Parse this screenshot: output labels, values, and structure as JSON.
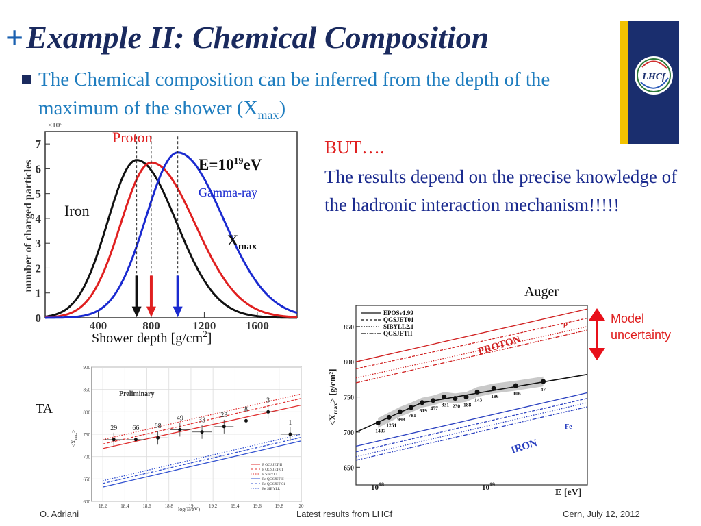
{
  "slide": {
    "title_plus": "+",
    "title": "Example II: Chemical Composition",
    "bullet_text": "The Chemical composition can be inferred from the depth of the maximum of the shower (X",
    "bullet_sub": "max",
    "bullet_end": ")",
    "but_label": "BUT….",
    "but_text": "The results depend on the precise knowledge of the hadronic interaction mechanism!!!!!",
    "logo_text": "LHCf",
    "footer_left": "O. Adriani",
    "footer_mid": "Latest results from LHCf",
    "footer_right": "Cern, July 12, 2012"
  },
  "colors": {
    "title": "#1a2a5e",
    "bullet": "#1f7dbf",
    "red": "#e02020",
    "blue": "#1a2a8e",
    "iron_curve": "#111111",
    "proton_curve": "#e02020",
    "gamma_curve": "#1a2ad0"
  },
  "chart_data": [
    {
      "type": "line",
      "annotations": {
        "proton": "Proton",
        "iron": "Iron",
        "gamma": "Gamma-ray",
        "energy_prefix": "E=10",
        "energy_exp": "19",
        "energy_suffix": "eV",
        "xmax": "X",
        "xmax_sub": "max"
      },
      "ylabel": "number of charged particles",
      "y_multiplier": "×10⁹",
      "xlabel_main": "Shower depth [g/cm",
      "xlabel_exp": "2",
      "xlabel_end": "]",
      "xticks": [
        "400",
        "800",
        "1200",
        "1600"
      ],
      "yticks": [
        "0",
        "1",
        "2",
        "3",
        "4",
        "5",
        "6",
        "7"
      ],
      "xlim": [
        0,
        1900
      ],
      "ylim": [
        0,
        7.5
      ],
      "curves": [
        {
          "name": "Iron",
          "color": "#111111",
          "peak_x": 690,
          "peak_y": 6.35,
          "sigma_left": 220,
          "sigma_right": 300
        },
        {
          "name": "Proton",
          "color": "#e02020",
          "peak_x": 800,
          "peak_y": 6.25,
          "sigma_left": 230,
          "sigma_right": 330
        },
        {
          "name": "Gamma-ray",
          "color": "#1a2ad0",
          "peak_x": 1000,
          "peak_y": 6.65,
          "sigma_left": 240,
          "sigma_right": 340
        }
      ]
    },
    {
      "type": "line",
      "label": "Auger",
      "legend": [
        "EPOSv1.99",
        "QGSJET01",
        "SIBYLL2.1",
        "QGSJETII"
      ],
      "ylabel": "<X",
      "ylabel_sub": "max",
      "ylabel_end": "> [g/cm²]",
      "xlabel": "E [eV]",
      "yticks": [
        "650",
        "700",
        "750",
        "800",
        "850"
      ],
      "xticks_main": [
        "10",
        "10"
      ],
      "xticks_exp": [
        "18",
        "19"
      ],
      "proton_label": "PROTON",
      "iron_label": "IRON",
      "p_tag": "p",
      "fe_tag": "Fe",
      "model_label_1": "Model",
      "model_label_2": "uncertainty",
      "points": [
        {
          "lgE": 18.05,
          "y": 713,
          "n": "1407"
        },
        {
          "lgE": 18.15,
          "y": 721,
          "n": "1251"
        },
        {
          "lgE": 18.25,
          "y": 729,
          "n": "998"
        },
        {
          "lgE": 18.35,
          "y": 735,
          "n": "781"
        },
        {
          "lgE": 18.45,
          "y": 742,
          "n": "619"
        },
        {
          "lgE": 18.55,
          "y": 745,
          "n": "457"
        },
        {
          "lgE": 18.65,
          "y": 750,
          "n": "331"
        },
        {
          "lgE": 18.75,
          "y": 748,
          "n": "230"
        },
        {
          "lgE": 18.85,
          "y": 750,
          "n": "188"
        },
        {
          "lgE": 18.95,
          "y": 757,
          "n": "143"
        },
        {
          "lgE": 19.1,
          "y": 762,
          "n": "186"
        },
        {
          "lgE": 19.3,
          "y": 766,
          "n": "106"
        },
        {
          "lgE": 19.55,
          "y": 772,
          "n": "47"
        }
      ]
    },
    {
      "type": "scatter",
      "label": "TA",
      "preliminary": "Preliminary",
      "xlabel": "log(E/eV)",
      "ylabel": "<X",
      "ylabel_sub": "max",
      "ylabel_end": ">",
      "xticks": [
        "18.2",
        "18.4",
        "18.6",
        "18.8",
        "19",
        "19.2",
        "19.4",
        "19.6",
        "19.8",
        "20"
      ],
      "yticks": [
        "600",
        "650",
        "700",
        "750",
        "800",
        "850",
        "900"
      ],
      "legend": [
        "P  QGSJET-II",
        "P  QGSJET-01",
        "P  SIBYLL",
        "Fe  QGSJET-II",
        "Fe  QGSJET-01",
        "Fe  SIBYLL"
      ],
      "points": [
        {
          "x": 18.3,
          "y": 738,
          "n": "29"
        },
        {
          "x": 18.5,
          "y": 738,
          "n": "66"
        },
        {
          "x": 18.7,
          "y": 742,
          "n": "68"
        },
        {
          "x": 18.9,
          "y": 760,
          "n": "49"
        },
        {
          "x": 19.1,
          "y": 755,
          "n": "33"
        },
        {
          "x": 19.3,
          "y": 767,
          "n": "23"
        },
        {
          "x": 19.5,
          "y": 780,
          "n": "8"
        },
        {
          "x": 19.7,
          "y": 800,
          "n": "3"
        },
        {
          "x": 19.9,
          "y": 750,
          "n": "1"
        }
      ]
    }
  ]
}
